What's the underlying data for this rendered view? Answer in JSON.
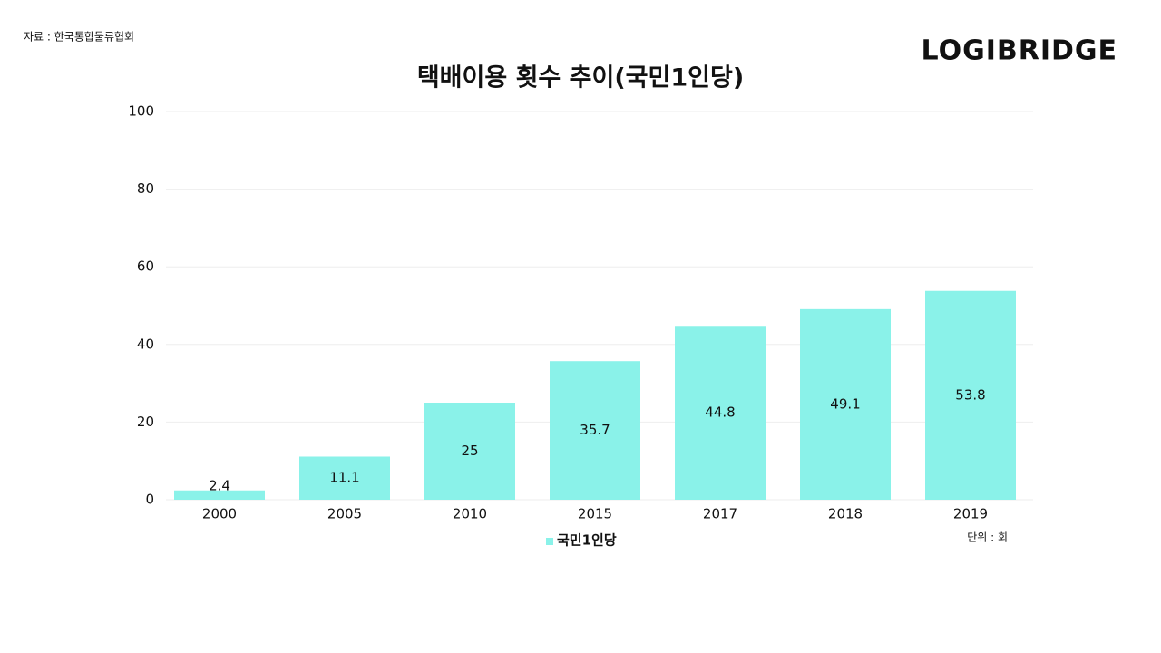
{
  "chart_data": {
    "type": "bar",
    "title": "택배이용 횟수 추이(국민1인당)",
    "source": "자료 : 한국통합물류협회",
    "brand": "LOGIBRIDGE",
    "unit": "단위 : 회",
    "categories": [
      "2000",
      "2005",
      "2010",
      "2015",
      "2017",
      "2018",
      "2019"
    ],
    "series": [
      {
        "name": "국민1인당",
        "color": "#8af2e9",
        "values": [
          2.4,
          11.1,
          25,
          35.7,
          44.8,
          49.1,
          53.8
        ]
      }
    ],
    "ylim": [
      0,
      100
    ],
    "yticks": [
      0,
      20,
      40,
      60,
      80,
      100
    ],
    "grid": true,
    "legend": "bottom"
  }
}
